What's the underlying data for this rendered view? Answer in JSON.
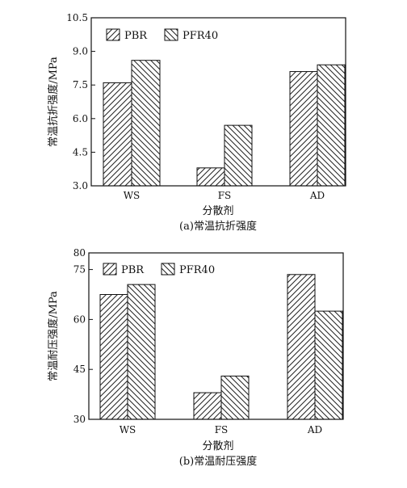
{
  "chart_data": [
    {
      "type": "bar",
      "categories": [
        "WS",
        "FS",
        "AD"
      ],
      "series": [
        {
          "name": "PBR",
          "values": [
            7.6,
            3.8,
            8.1
          ]
        },
        {
          "name": "PFR40",
          "values": [
            8.6,
            5.7,
            8.4
          ]
        }
      ],
      "xlabel": "分散剂",
      "ylabel": "常温抗折强度/MPa",
      "caption": "(a)常温抗折强度",
      "ylim": [
        3.0,
        10.5
      ],
      "yticks": [
        "3.0",
        "4.5",
        "6.0",
        "7.5",
        "9.0",
        "10.5"
      ],
      "grid": false,
      "legend_position": "top-left"
    },
    {
      "type": "bar",
      "categories": [
        "WS",
        "FS",
        "AD"
      ],
      "series": [
        {
          "name": "PBR",
          "values": [
            67.5,
            38,
            73.5
          ]
        },
        {
          "name": "PFR40",
          "values": [
            70.5,
            43,
            62.5
          ]
        }
      ],
      "xlabel": "分散剂",
      "ylabel": "常温耐压强度/MPa",
      "caption": "(b)常温耐压强度",
      "ylim": [
        30,
        80
      ],
      "yticks": [
        "30",
        "45",
        "60",
        "75",
        "80"
      ],
      "grid": false,
      "legend_position": "top-left"
    }
  ]
}
